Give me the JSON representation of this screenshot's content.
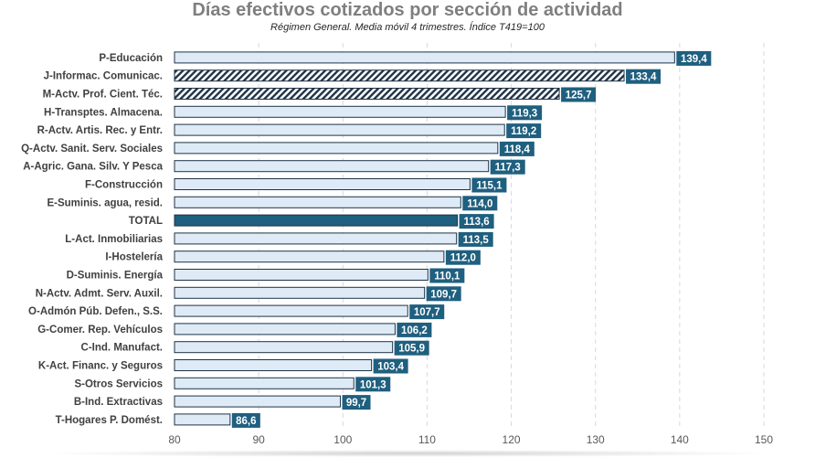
{
  "chart_data": {
    "type": "bar",
    "orientation": "horizontal",
    "title": "Días efectivos cotizados por sección de actividad",
    "subtitle": "Régimen General. Media móvil 4 trimestres. Índice T419=100",
    "categories": [
      "P-Educación",
      "J-Informac. Comunicac.",
      "M-Actv. Prof. Cient. Téc.",
      "H-Transptes. Almacena.",
      "R-Actv. Artis. Rec. y Entr.",
      "Q-Actv. Sanit. Serv. Sociales",
      "A-Agric. Gana. Silv. Y Pesca",
      "F-Construcción",
      "E-Suminis. agua, resid.",
      "TOTAL",
      "L-Act. Inmobiliarias",
      "I-Hostelería",
      "D-Suminis. Energía",
      "N-Actv. Admt. Serv. Auxil.",
      "O-Admón Púb. Defen., S.S.",
      "G-Comer. Rep. Vehículos",
      "C-Ind. Manufact.",
      "K-Act. Financ. y Seguros",
      "S-Otros Servicios",
      "B-Ind. Extractivas",
      "T-Hogares P. Domést."
    ],
    "values": [
      139.4,
      133.4,
      125.7,
      119.3,
      119.2,
      118.4,
      117.3,
      115.1,
      114.0,
      113.6,
      113.5,
      112.0,
      110.1,
      109.7,
      107.7,
      106.2,
      105.9,
      103.4,
      101.3,
      99.7,
      86.6
    ],
    "value_labels": [
      "139,4",
      "133,4",
      "125,7",
      "119,3",
      "119,2",
      "118,4",
      "117,3",
      "115,1",
      "114,0",
      "113,6",
      "113,5",
      "112,0",
      "110,1",
      "109,7",
      "107,7",
      "106,2",
      "105,9",
      "103,4",
      "101,3",
      "99,7",
      "86,6"
    ],
    "bar_styles": [
      "solid",
      "hatched",
      "hatched",
      "solid",
      "solid",
      "solid",
      "solid",
      "solid",
      "solid",
      "highlight",
      "solid",
      "solid",
      "solid",
      "solid",
      "solid",
      "solid",
      "solid",
      "solid",
      "solid",
      "solid",
      "solid"
    ],
    "xlim": [
      80,
      150
    ],
    "xticks": [
      80,
      90,
      100,
      110,
      120,
      130,
      140,
      150
    ],
    "xlabel": "",
    "ylabel": "",
    "grid": "vertical dashed",
    "colors": {
      "bar_fill": "#deebf7",
      "bar_border": "#1f3347",
      "highlight": "#1f5f7f",
      "label_box": "#1f5f7f",
      "grid": "#d9d9d9"
    }
  }
}
